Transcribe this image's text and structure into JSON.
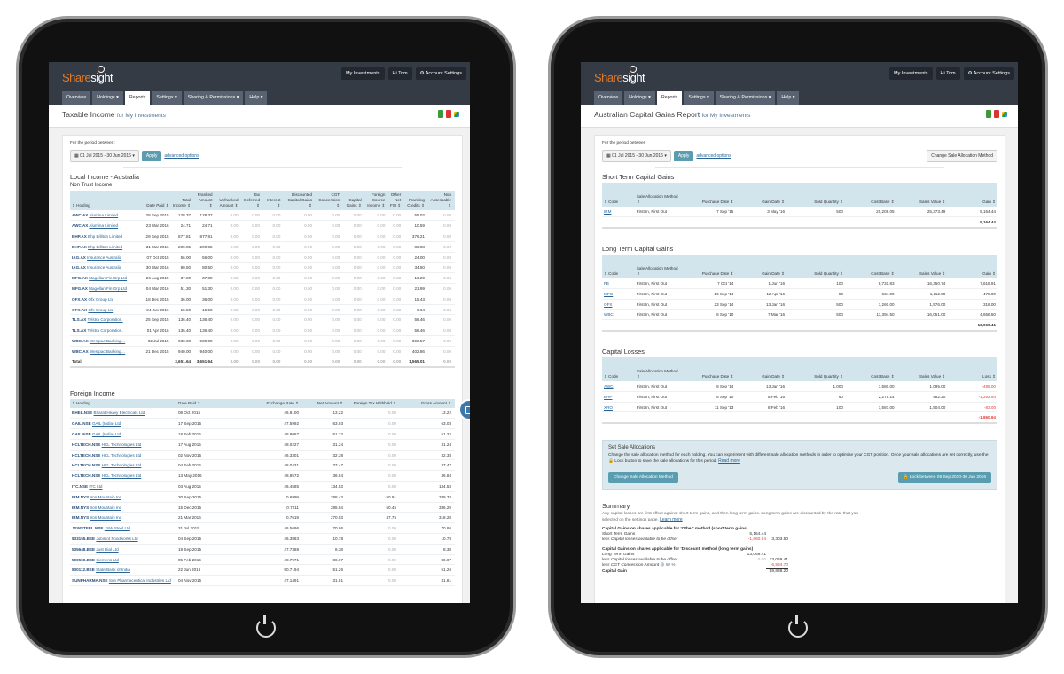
{
  "app": {
    "logo": "Sharesight",
    "my_investments": "My Investments",
    "greeting": "Hi Tom",
    "account_settings": "⚙ Account Settings",
    "nav": [
      "Overview",
      "Holdings",
      "Reports",
      "Settings",
      "Sharing & Permissions",
      "Help"
    ],
    "active_tab": "Reports",
    "caret": " ▾"
  },
  "colors": {
    "header": "#353b45",
    "accent": "#5a9cb0",
    "table_header": "#d3e5ec",
    "negative": "#e0403a",
    "logo_orange": "#e07b2a"
  },
  "left": {
    "title": "Taxable Income",
    "for": "for My Investments",
    "period_label": "For the period between:",
    "date_range": "01 Jul 2015 - 30 Jun 2016",
    "apply": "Apply",
    "advanced": "advanced options",
    "local_heading": "Local Income - Australia",
    "non_trust": "Non Trust Income",
    "local_columns": [
      "⇕ Holding",
      "Date Paid ⇕",
      "Total Income ⇕",
      "Franked Amount ⇕",
      "Unfranked Amount ⇕",
      "Tax Deferred ⇕",
      "Interest ⇕",
      "Discounted Capital Gains ⇕",
      "CGT Concession ⇕",
      "Capital Gains ⇕",
      "Foreign Source Income ⇕",
      "Other Net FSI ⇕",
      "Franking Credits ⇕",
      "Non Assessable ⇕",
      "TFN WT ⇕",
      "Foreign Income ⇕"
    ],
    "local_rows": [
      {
        "ticker": "AWC.AX",
        "name": "Alumina Limited",
        "date": "28 Sep 2015",
        "total": "128.37",
        "franked": "128.37",
        "credits": "55.02"
      },
      {
        "ticker": "AWC.AX",
        "name": "Alumina Limited",
        "date": "23 Mar 2016",
        "total": "24.71",
        "franked": "24.71",
        "credits": "10.59"
      },
      {
        "ticker": "BHP.AX",
        "name": "Bhp Billiton Limited",
        "date": "29 Sep 2015",
        "total": "877.81",
        "franked": "877.81",
        "credits": "376.21"
      },
      {
        "ticker": "BHP.AX",
        "name": "Bhp Billiton Limited",
        "date": "31 Mar 2016",
        "total": "200.85",
        "franked": "200.85",
        "credits": "86.08"
      },
      {
        "ticker": "IAG.AX",
        "name": "Insurance Australia",
        "date": "07 Oct 2015",
        "total": "56.00",
        "franked": "56.00",
        "credits": "24.00"
      },
      {
        "ticker": "IAG.AX",
        "name": "Insurance Australia",
        "date": "30 Mar 2016",
        "total": "80.50",
        "franked": "80.50",
        "credits": "34.50"
      },
      {
        "ticker": "MFG.AX",
        "name": "Magellan Fin Grp Ltd",
        "date": "26 Aug 2015",
        "total": "37.80",
        "franked": "37.80",
        "credits": "16.20"
      },
      {
        "ticker": "MFG.AX",
        "name": "Magellan Fin Grp Ltd",
        "date": "04 Mar 2016",
        "total": "51.30",
        "franked": "51.30",
        "credits": "21.99"
      },
      {
        "ticker": "OFX.AX",
        "name": "Ofx Group Ltd",
        "date": "18 Dec 2015",
        "total": "36.00",
        "franked": "36.00",
        "credits": "15.43"
      },
      {
        "ticker": "OFX.AX",
        "name": "Ofx Group Ltd",
        "date": "24 Jun 2016",
        "total": "15.50",
        "franked": "15.50",
        "credits": "6.64"
      },
      {
        "ticker": "TLS.AX",
        "name": "Telstra Corporation.",
        "date": "25 Sep 2015",
        "total": "136.40",
        "franked": "136.40",
        "credits": "58.46"
      },
      {
        "ticker": "TLS.AX",
        "name": "Telstra Corporation.",
        "date": "01 Apr 2016",
        "total": "136.40",
        "franked": "136.40",
        "credits": "58.46"
      },
      {
        "ticker": "WBC.AX",
        "name": "Westpac Banking…",
        "date": "02 Jul 2015",
        "total": "930.00",
        "franked": "930.00",
        "credits": "398.57"
      },
      {
        "ticker": "WBC.AX",
        "name": "Westpac Banking…",
        "date": "21 Dec 2015",
        "total": "940.00",
        "franked": "940.00",
        "credits": "402.86"
      }
    ],
    "zero": "0.00",
    "local_total": {
      "label": "Total",
      "total": "3,651.64",
      "franked": "3,651.64",
      "credits": "1,565.01"
    },
    "foreign_heading": "Foreign Income",
    "foreign_columns": [
      "⇕ Holding",
      "Date Paid ⇕",
      "Exchange Rate ⇕",
      "Net Amount ⇕",
      "Foreign Tax Withheld ⇕",
      "Gross Amount ⇕"
    ],
    "foreign_rows": [
      {
        "ticker": "BHEL.NSE",
        "name": "Bharat Heavy Electricals Ltd",
        "date": "08 Oct 2015",
        "rate": "46.9100",
        "net": "13.22",
        "tax": "0.00",
        "gross": "13.22",
        "note": true
      },
      {
        "ticker": "GAIL.NSE",
        "name": "GAIL (India) Ltd",
        "date": "17 Sep 2015",
        "rate": "47.5992",
        "net": "63.03",
        "tax": "0.00",
        "gross": "63.03",
        "note": true
      },
      {
        "ticker": "GAIL.NSE",
        "name": "GAIL (India) Ltd",
        "date": "18 Feb 2016",
        "rate": "48.8067",
        "net": "51.22",
        "tax": "0.00",
        "gross": "51.22",
        "note": true
      },
      {
        "ticker": "HCLTECH.NSE",
        "name": "HCL Technologies Ltd",
        "date": "17 Aug 2015",
        "rate": "48.0227",
        "net": "31.24",
        "tax": "0.00",
        "gross": "31.24",
        "note": false
      },
      {
        "ticker": "HCLTECH.NSE",
        "name": "HCL Technologies Ltd",
        "date": "02 Nov 2015",
        "rate": "46.3301",
        "net": "32.38",
        "tax": "0.00",
        "gross": "32.38",
        "note": false
      },
      {
        "ticker": "HCLTECH.NSE",
        "name": "HCL Technologies Ltd",
        "date": "04 Feb 2016",
        "rate": "48.0431",
        "net": "37.47",
        "tax": "0.00",
        "gross": "37.47",
        "note": false
      },
      {
        "ticker": "HCLTECH.NSE",
        "name": "HCL Technologies Ltd",
        "date": "13 May 2016",
        "rate": "48.8572",
        "net": "36.84",
        "tax": "0.00",
        "gross": "36.84",
        "note": false
      },
      {
        "ticker": "ITC.NSE",
        "name": "ITC Ltd",
        "date": "03 Aug 2015",
        "rate": "46.4585",
        "net": "134.53",
        "tax": "0.00",
        "gross": "134.53",
        "note": true
      },
      {
        "ticker": "IRM.NYS",
        "name": "Iron Mountain Inc",
        "date": "30 Sep 2015",
        "rate": "0.6999",
        "net": "288.43",
        "tax": "50.91",
        "gross": "339.33",
        "note": true
      },
      {
        "ticker": "IRM.NYS",
        "name": "Iron Mountain Inc",
        "date": "15 Dec 2015",
        "rate": "0.7211",
        "net": "285.84",
        "tax": "50.45",
        "gross": "336.29",
        "note": true
      },
      {
        "ticker": "IRM.NYS",
        "name": "Iron Mountain Inc",
        "date": "21 Mar 2016",
        "rate": "0.7619",
        "net": "270.53",
        "tax": "47.75",
        "gross": "318.28",
        "note": true
      },
      {
        "ticker": "JSWSTEEL.NSE",
        "name": "JSW Steel Ltd",
        "date": "31 Jul 2015",
        "rate": "46.5696",
        "net": "70.86",
        "tax": "0.00",
        "gross": "70.86",
        "note": true
      },
      {
        "ticker": "533155.BSE",
        "name": "Jubilant Foodworks Ltd",
        "date": "04 Sep 2015",
        "rate": "46.3883",
        "net": "10.78",
        "tax": "0.00",
        "gross": "10.78",
        "note": true
      },
      {
        "ticker": "535648.BSE",
        "name": "Just Dial Ltd",
        "date": "19 Sep 2015",
        "rate": "47.7388",
        "net": "8.38",
        "tax": "0.00",
        "gross": "8.38",
        "note": true
      },
      {
        "ticker": "500550.BSE",
        "name": "Siemens Ltd",
        "date": "05 Feb 2016",
        "rate": "48.7971",
        "net": "86.07",
        "tax": "0.00",
        "gross": "86.07",
        "note": true
      },
      {
        "ticker": "500112.BSE",
        "name": "State Bank of India",
        "date": "22 Jun 2016",
        "rate": "50.7194",
        "net": "51.26",
        "tax": "0.00",
        "gross": "51.26",
        "note": true
      },
      {
        "ticker": "SUNPHARMA.NSE",
        "name": "Sun Pharmaceutical Industries Ltd",
        "date": "04 Nov 2015",
        "rate": "47.1491",
        "net": "31.81",
        "tax": "0.00",
        "gross": "31.81",
        "note": true
      }
    ],
    "note_glyph": "ϟ"
  },
  "right": {
    "title": "Australian Capital Gains Report",
    "for": "for My Investments",
    "period_label": "For the period between",
    "date_range": "01 Jul 2015 - 30 Jun 2016",
    "apply": "Apply",
    "advanced": "advanced options",
    "change_method": "Change Sale Allocation Method",
    "columns": [
      "⇕ Code",
      "Sale Allocation Method ⇕",
      "Purchase Date ⇕",
      "Gain Date ⇕",
      "Sold Quantity ⇕",
      "Cost Base ⇕",
      "Sales Value ⇕",
      "Gain ⇕"
    ],
    "loss_columns": [
      "⇕ Code",
      "Sale Allocation Method ⇕",
      "Purchase Date ⇕",
      "Gain Date ⇕",
      "Sold Quantity ⇕",
      "Cost Base ⇕",
      "Sales Value ⇕",
      "Loss ⇕"
    ],
    "sections": [
      {
        "heading": "Short Term Capital Gains",
        "rows": [
          [
            "IRM",
            "First In, First Out",
            "7 Sep '15",
            "3 May '16",
            "500",
            "20,209.05",
            "25,373.49",
            "5,164.44"
          ]
        ],
        "total": "5,164.44",
        "negative": false
      },
      {
        "heading": "Long Term Capital Gains",
        "rows": [
          [
            "FB",
            "First In, First Out",
            "7 Oct '14",
            "1 Jun '16",
            "100",
            "8,731.83",
            "16,350.74",
            "7,618.91"
          ],
          [
            "MFG",
            "First In, First Out",
            "16 Sep '14",
            "12 Apr '16",
            "50",
            "634.00",
            "1,112.00",
            "478.00"
          ],
          [
            "OFX",
            "First In, First Out",
            "23 Sep '14",
            "13 Jan '16",
            "500",
            "1,260.00",
            "1,576.00",
            "316.00"
          ],
          [
            "WBC",
            "First In, First Out",
            "6 Sep '10",
            "7 Mar '16",
            "500",
            "11,394.50",
            "16,051.00",
            "4,656.50"
          ]
        ],
        "total": "13,069.41",
        "negative": false
      },
      {
        "heading": "Capital Losses",
        "rows": [
          [
            "AWC",
            "First In, First Out",
            "8 Sep '14",
            "13 Jan '16",
            "1,000",
            "1,580.00",
            "1,095.00",
            "-485.00"
          ],
          [
            "BHP",
            "First In, First Out",
            "8 Sep '10",
            "8 Feb '16",
            "60",
            "2,275.14",
            "982.20",
            "-1,292.94"
          ],
          [
            "XRO",
            "First In, First Out",
            "11 Sep '13",
            "8 Feb '16",
            "100",
            "1,587.00",
            "1,504.00",
            "-83.00"
          ]
        ],
        "total": "-1,860.94",
        "negative": true
      }
    ],
    "set_alloc": {
      "heading": "Set Sale Allocations",
      "text": "Change the sale allocation method for each holding. You can experiment with different sale allocation methods in order to optimise your CGT position. Once your sale allocations are set correctly, use the 🔒 Lock button to save the sale allocations for this period.",
      "read_more": "Read more",
      "change_button": "Change Sale Allocation Method",
      "lock_button": "🔒 Lock between 06 Sep 2010-30 Jun 2016"
    },
    "summary": {
      "heading": "Summary",
      "text": "Any capital losses are first offset against short term gains, and then long term gains. Long term gains are discounted by the rate that you selected on the settings page.",
      "learn_more": "Learn more",
      "other_heading": "Capital Gains on shares applicable for 'Other' method (short term gains)",
      "short_term_gains_label": "Short Term Gains",
      "short_term_gains": "5,164.44",
      "less_losses_label": "less Capital losses available to be offset",
      "less_losses_st": "-1,860.94",
      "st_net": "3,303.50",
      "discount_heading": "Capital Gains on shares applicable for 'Discount' method (long term gains)",
      "long_term_gains_label": "Long Term Gains",
      "long_term_gains": "13,069.41",
      "less_losses_lt": "0.00",
      "lt_net": "13,069.41",
      "concession_label": "less CGT Concession Amount",
      "concession_rate": "@ 50 %",
      "concession": "-6,534.70",
      "capital_gain_label": "Capital Gain",
      "capital_gain": "$9,838.20"
    }
  }
}
